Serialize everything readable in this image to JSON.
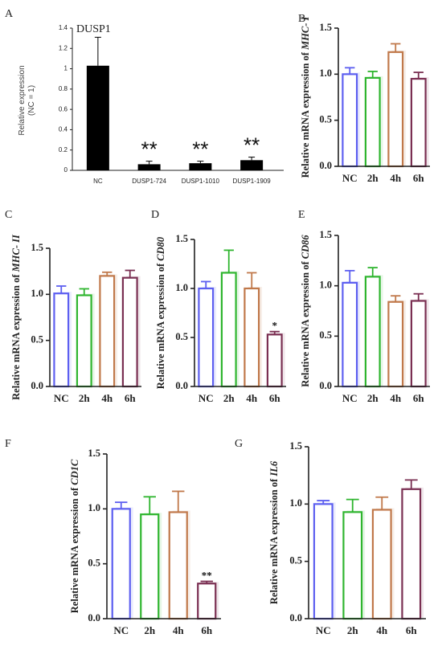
{
  "chart_data": [
    {
      "panel": "A",
      "type": "bar",
      "title": "DUSP1",
      "categories": [
        "NC",
        "DUSP1-724",
        "DUSP1-1010",
        "DUSP1-1909"
      ],
      "values": [
        1.03,
        0.06,
        0.07,
        0.1
      ],
      "errors": [
        0.28,
        0.03,
        0.02,
        0.03
      ],
      "significance": [
        "",
        "**",
        "**",
        "**"
      ],
      "ylabel": "Relative expression",
      "ylabel2": "(NC = 1)",
      "ylim": [
        0,
        1.4
      ],
      "yticks": [
        "0",
        "0.2",
        "0.4",
        "0.6",
        "0.8",
        "1",
        "1.2",
        "1.4"
      ],
      "fill": "solid-black"
    },
    {
      "panel": "B",
      "type": "bar",
      "ylabel": "Relative mRNA expression of",
      "gene": "MHC- I",
      "categories": [
        "NC",
        "2h",
        "4h",
        "6h"
      ],
      "values": [
        1.0,
        0.96,
        1.24,
        0.95
      ],
      "errors": [
        0.07,
        0.07,
        0.09,
        0.07
      ],
      "significance": [
        "",
        "",
        "",
        ""
      ],
      "ylim": [
        0,
        1.5
      ],
      "yticks": [
        "0.0",
        "0.5",
        "1.0",
        "1.5"
      ]
    },
    {
      "panel": "C",
      "type": "bar",
      "ylabel": "Relative mRNA expression of",
      "gene": "MHC- II",
      "categories": [
        "NC",
        "2h",
        "4h",
        "6h"
      ],
      "values": [
        1.01,
        0.99,
        1.2,
        1.18
      ],
      "errors": [
        0.08,
        0.07,
        0.04,
        0.08
      ],
      "significance": [
        "",
        "",
        "",
        ""
      ],
      "ylim": [
        0,
        1.5
      ],
      "yticks": [
        "0.0",
        "0.5",
        "1.0",
        "1.5"
      ]
    },
    {
      "panel": "D",
      "type": "bar",
      "ylabel": "Relative mRNA expression of",
      "gene": "CD80",
      "categories": [
        "NC",
        "2h",
        "4h",
        "6h"
      ],
      "values": [
        1.0,
        1.16,
        1.0,
        0.53
      ],
      "errors": [
        0.07,
        0.23,
        0.16,
        0.03
      ],
      "significance": [
        "",
        "",
        "",
        "*"
      ],
      "ylim": [
        0,
        1.5
      ],
      "yticks": [
        "0.0",
        "0.5",
        "1.0",
        "1.5"
      ]
    },
    {
      "panel": "E",
      "type": "bar",
      "ylabel": "Relative mRNA expression of",
      "gene": "CD86",
      "categories": [
        "NC",
        "2h",
        "4h",
        "6h"
      ],
      "values": [
        1.03,
        1.09,
        0.84,
        0.85
      ],
      "errors": [
        0.12,
        0.09,
        0.06,
        0.07
      ],
      "significance": [
        "",
        "",
        "",
        ""
      ],
      "ylim": [
        0,
        1.5
      ],
      "yticks": [
        "0.0",
        "0.5",
        "1.0",
        "1.5"
      ]
    },
    {
      "panel": "F",
      "type": "bar",
      "ylabel": "Relative mRNA expression of",
      "gene": "CD1C",
      "categories": [
        "NC",
        "2h",
        "4h",
        "6h"
      ],
      "values": [
        1.0,
        0.95,
        0.97,
        0.32
      ],
      "errors": [
        0.06,
        0.16,
        0.19,
        0.02
      ],
      "significance": [
        "",
        "",
        "",
        "**"
      ],
      "ylim": [
        0,
        1.5
      ],
      "yticks": [
        "0.0",
        "0.5",
        "1.0",
        "1.5"
      ]
    },
    {
      "panel": "G",
      "type": "bar",
      "ylabel": "Relative mRNA expression of",
      "gene": "IL6",
      "categories": [
        "NC",
        "2h",
        "4h",
        "6h"
      ],
      "values": [
        1.0,
        0.93,
        0.95,
        1.13
      ],
      "errors": [
        0.03,
        0.11,
        0.11,
        0.08
      ],
      "significance": [
        "",
        "",
        "",
        ""
      ],
      "ylim": [
        0,
        1.5
      ],
      "yticks": [
        "0.0",
        "0.5",
        "1.0",
        "1.5"
      ]
    }
  ],
  "series_colors": [
    "#5d5ff0",
    "#2fb52f",
    "#c0784a",
    "#7a2f52"
  ],
  "panel_labels": [
    "A",
    "B",
    "C",
    "D",
    "E",
    "F",
    "G"
  ]
}
